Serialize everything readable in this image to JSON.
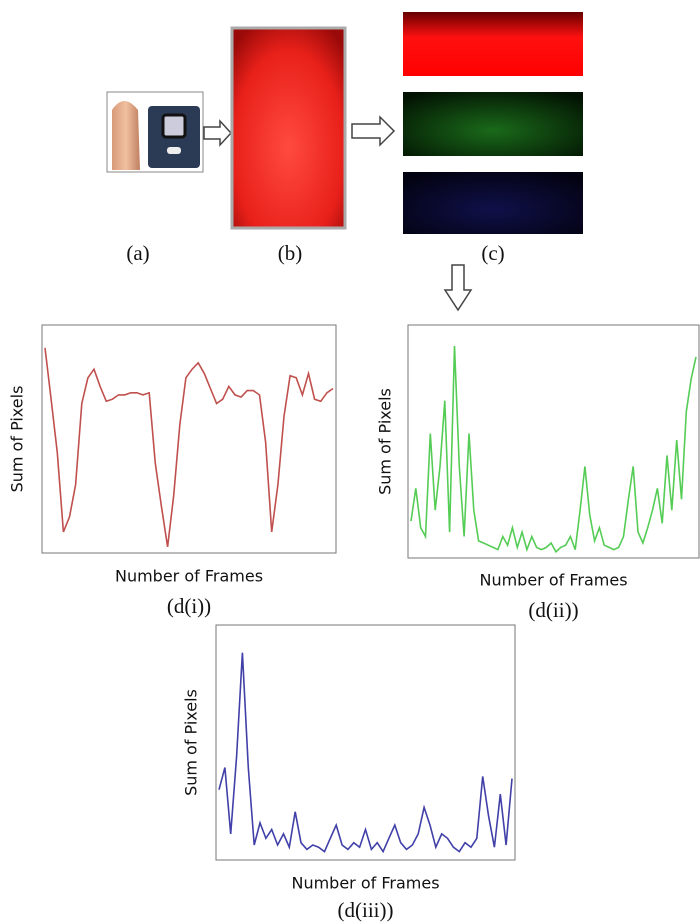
{
  "diagram": {
    "labels": [
      "(a)",
      "(b)",
      "(c)"
    ]
  },
  "chart_data": [
    {
      "type": "line",
      "caption": "(d(i))",
      "xlabel": "Number of Frames",
      "ylabel": "Sum of Pixels",
      "color": "#c0504d",
      "ylim": [
        0,
        100
      ],
      "values": [
        94,
        70,
        45,
        8,
        15,
        30,
        68,
        80,
        84,
        76,
        69,
        70,
        72,
        72,
        73,
        73,
        72,
        73,
        40,
        20,
        1,
        25,
        58,
        80,
        84,
        87,
        82,
        75,
        68,
        70,
        76,
        72,
        71,
        74,
        74,
        72,
        50,
        8,
        30,
        62,
        81,
        80,
        72,
        82,
        70,
        69,
        73,
        75
      ]
    },
    {
      "type": "line",
      "caption": "(d(ii))",
      "xlabel": "Number of Frames",
      "ylabel": "Sum of Pixels",
      "color": "#55cc55",
      "ylim": [
        0,
        100
      ],
      "values": [
        15,
        30,
        12,
        8,
        55,
        20,
        40,
        70,
        10,
        95,
        40,
        8,
        55,
        20,
        6,
        5,
        4,
        3,
        2,
        8,
        4,
        12,
        3,
        10,
        2,
        8,
        3,
        2,
        3,
        5,
        1,
        3,
        4,
        8,
        2,
        20,
        40,
        18,
        6,
        12,
        4,
        3,
        2,
        3,
        8,
        25,
        40,
        10,
        5,
        12,
        20,
        30,
        14,
        45,
        20,
        52,
        25,
        65,
        80,
        90
      ]
    },
    {
      "type": "line",
      "caption": "(d(iii))",
      "xlabel": "Number of Frames",
      "ylabel": "Sum of Pixels",
      "color": "#4040a8",
      "ylim": [
        0,
        100
      ],
      "values": [
        30,
        40,
        10,
        45,
        92,
        40,
        5,
        15,
        8,
        12,
        5,
        10,
        4,
        20,
        6,
        3,
        5,
        4,
        2,
        8,
        14,
        5,
        3,
        6,
        4,
        12,
        3,
        6,
        2,
        8,
        14,
        6,
        3,
        5,
        10,
        22,
        14,
        4,
        10,
        8,
        4,
        2,
        6,
        4,
        8,
        36,
        18,
        4,
        28,
        5,
        35
      ]
    }
  ]
}
